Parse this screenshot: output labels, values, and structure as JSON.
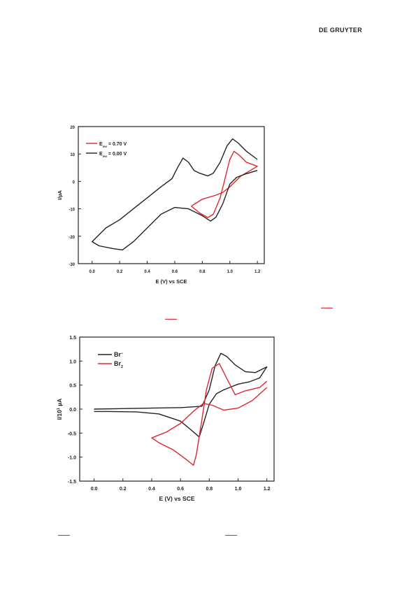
{
  "header": {
    "publisher": "DE GRUYTER"
  },
  "chart_data": [
    {
      "type": "line",
      "xlabel": "E (V) vs SCE",
      "ylabel": "I/µA",
      "xlim": [
        -0.1,
        1.25
      ],
      "ylim": [
        -30,
        20
      ],
      "xticks": [
        "0.0",
        "0.2",
        "0.4",
        "0.6",
        "0.8",
        "1.0",
        "1.2"
      ],
      "yticks": [
        "20",
        "10",
        "0",
        "-10",
        "-20",
        "-30"
      ],
      "legend_position": "top-left",
      "series": [
        {
          "name_main": "E",
          "name_sub": "rev",
          "name_rest": " = 0.70 V",
          "color": "#e0262b",
          "points": [
            [
              0.72,
              -9
            ],
            [
              0.78,
              -11.5
            ],
            [
              0.84,
              -13.2
            ],
            [
              0.88,
              -12
            ],
            [
              0.93,
              -6
            ],
            [
              0.97,
              2
            ],
            [
              1.0,
              8
            ],
            [
              1.03,
              11
            ],
            [
              1.07,
              9.5
            ],
            [
              1.12,
              7
            ],
            [
              1.2,
              5.5
            ],
            [
              1.15,
              4
            ],
            [
              1.08,
              2
            ],
            [
              1.0,
              -2
            ],
            [
              0.95,
              -4
            ],
            [
              0.9,
              -5
            ],
            [
              0.8,
              -6.5
            ],
            [
              0.72,
              -9
            ]
          ]
        },
        {
          "name_main": "E",
          "name_sub": "rev",
          "name_rest": " = 0.00 V",
          "color": "#222222",
          "points": [
            [
              1.2,
              8
            ],
            [
              1.12,
              11
            ],
            [
              1.06,
              14
            ],
            [
              1.02,
              15.5
            ],
            [
              0.98,
              13
            ],
            [
              0.93,
              7
            ],
            [
              0.88,
              3
            ],
            [
              0.84,
              2
            ],
            [
              0.78,
              3
            ],
            [
              0.74,
              4
            ],
            [
              0.7,
              7
            ],
            [
              0.66,
              8.5
            ],
            [
              0.62,
              5
            ],
            [
              0.58,
              1
            ],
            [
              0.5,
              -2
            ],
            [
              0.4,
              -6
            ],
            [
              0.3,
              -10
            ],
            [
              0.2,
              -14
            ],
            [
              0.1,
              -17
            ],
            [
              0.0,
              -22
            ],
            [
              0.05,
              -23.5
            ],
            [
              0.15,
              -24.5
            ],
            [
              0.22,
              -25
            ],
            [
              0.3,
              -22
            ],
            [
              0.4,
              -17
            ],
            [
              0.5,
              -12
            ],
            [
              0.6,
              -9.5
            ],
            [
              0.7,
              -10
            ],
            [
              0.8,
              -12.5
            ],
            [
              0.86,
              -14.5
            ],
            [
              0.9,
              -13
            ],
            [
              0.95,
              -8
            ],
            [
              1.0,
              -1
            ],
            [
              1.05,
              1.5
            ],
            [
              1.12,
              2.8
            ],
            [
              1.2,
              4
            ]
          ]
        }
      ]
    },
    {
      "type": "line",
      "xlabel": "E (V) vs SCE",
      "ylabel_main": "I/10",
      "ylabel_sup": "1",
      "ylabel_rest": " µA",
      "xlim": [
        -0.1,
        1.25
      ],
      "ylim": [
        -1.5,
        1.5
      ],
      "xticks": [
        "0.0",
        "0.2",
        "0.4",
        "0.6",
        "0.8",
        "1.0",
        "1.2"
      ],
      "yticks": [
        "1.5",
        "1.0",
        "0.5",
        "0.0",
        "-0.5",
        "-1.0",
        "-1.5"
      ],
      "legend_position": "top-left",
      "series": [
        {
          "name_main": "Br",
          "name_sup": "−",
          "name_sub": "",
          "color": "#222222",
          "points": [
            [
              0.0,
              0.0
            ],
            [
              0.2,
              0.01
            ],
            [
              0.4,
              0.02
            ],
            [
              0.6,
              0.03
            ],
            [
              0.75,
              0.06
            ],
            [
              0.8,
              0.4
            ],
            [
              0.84,
              0.9
            ],
            [
              0.88,
              1.16
            ],
            [
              0.92,
              1.1
            ],
            [
              0.98,
              0.92
            ],
            [
              1.05,
              0.78
            ],
            [
              1.12,
              0.76
            ],
            [
              1.2,
              0.88
            ],
            [
              1.15,
              0.65
            ],
            [
              1.08,
              0.57
            ],
            [
              1.0,
              0.52
            ],
            [
              0.95,
              0.46
            ],
            [
              0.9,
              0.4
            ],
            [
              0.85,
              0.32
            ],
            [
              0.8,
              0.1
            ],
            [
              0.76,
              -0.3
            ],
            [
              0.73,
              -0.58
            ],
            [
              0.68,
              -0.45
            ],
            [
              0.6,
              -0.25
            ],
            [
              0.45,
              -0.1
            ],
            [
              0.3,
              -0.06
            ],
            [
              0.1,
              -0.05
            ],
            [
              0.0,
              -0.05
            ]
          ]
        },
        {
          "name_main": "Br",
          "name_sup": "",
          "name_sub": "2",
          "color": "#e0262b",
          "points": [
            [
              1.2,
              0.58
            ],
            [
              1.15,
              0.45
            ],
            [
              1.05,
              0.38
            ],
            [
              0.98,
              0.3
            ],
            [
              0.92,
              0.65
            ],
            [
              0.87,
              0.95
            ],
            [
              0.82,
              0.85
            ],
            [
              0.78,
              0.4
            ],
            [
              0.75,
              -0.2
            ],
            [
              0.71,
              -0.95
            ],
            [
              0.69,
              -1.17
            ],
            [
              0.64,
              -1.05
            ],
            [
              0.55,
              -0.85
            ],
            [
              0.45,
              -0.7
            ],
            [
              0.4,
              -0.6
            ],
            [
              0.5,
              -0.48
            ],
            [
              0.6,
              -0.3
            ],
            [
              0.7,
              -0.02
            ],
            [
              0.76,
              0.12
            ],
            [
              0.82,
              0.08
            ],
            [
              0.9,
              -0.02
            ],
            [
              1.0,
              0.02
            ],
            [
              1.1,
              0.18
            ],
            [
              1.2,
              0.45
            ]
          ]
        }
      ]
    }
  ]
}
